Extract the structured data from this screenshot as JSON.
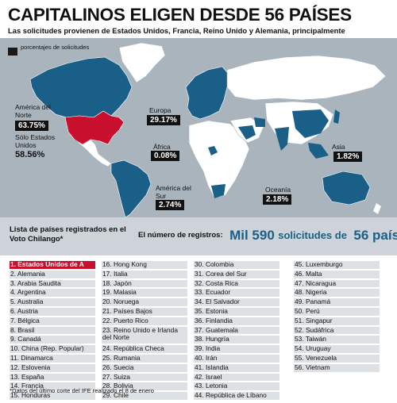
{
  "title": "CAPITALINOS ELIGEN DESDE 56 PAÍSES",
  "subtitle": "Las solicitudes provienen de Estados Unidos, Francia, Reino Unido y Alemania, principalmente",
  "legend": {
    "label": "porcentajes de solicitudes"
  },
  "regions": [
    {
      "key": "north-america",
      "name": "América del Norte",
      "pct": "63.75%"
    },
    {
      "key": "usa",
      "name": "Sólo Estados Unidos",
      "pct": "58.56%"
    },
    {
      "key": "europe",
      "name": "Europa",
      "pct": "29.17%"
    },
    {
      "key": "africa",
      "name": "África",
      "pct": "0.08%"
    },
    {
      "key": "asia",
      "name": "Asia",
      "pct": "1.82%"
    },
    {
      "key": "south-america",
      "name": "América del Sur",
      "pct": "2.74%"
    },
    {
      "key": "oceania",
      "name": "Oceanía",
      "pct": "2.18%"
    }
  ],
  "list_title": "Lista de países registrados en el Voto Chilango*",
  "registrations": {
    "lead": "El número de registros:",
    "number": "Mil 590",
    "mid": "solicitudes de",
    "countries": "56 países"
  },
  "countries": [
    [
      "1. Estados Unidos de A",
      "2. Alemania",
      "3. Arabia Saudita",
      "4. Argentina",
      "5. Australia",
      "6. Austria",
      "7. Bélgica",
      "8. Brasil",
      "9. Canadá",
      "10. China (Rep. Popular)",
      "11. Dinamarca",
      "12. Eslovenia",
      "13. España",
      "14. Francia",
      "15. Honduras"
    ],
    [
      "16. Hong Kong",
      "17. Italia",
      "18. Japón",
      "19. Malasia",
      "20. Noruega",
      "21. Países Bajos",
      "22. Puerto Rico",
      "23. Reino Unido e Irlanda del Norte",
      "24. República Checa",
      "25. Rumania",
      "26. Suecia",
      "27. Suiza",
      "28. Bolivia",
      "29. Chile"
    ],
    [
      "30. Colombia",
      "31. Corea del Sur",
      "32. Costa Rica",
      "33. Ecuador",
      "34. El Salvador",
      "35. Estonia",
      "36. Finlandia",
      "37. Guatemala",
      "38. Hungría",
      "39. India",
      "40. Irán",
      "41. Islandia",
      "42. Israel",
      "43. Letonia",
      "44. República de Líbano"
    ],
    [
      "45. Luxemburgo",
      "46. Malta",
      "47. Nicaragua",
      "48. Nigeria",
      "49. Panamá",
      "50. Perú",
      "51. Singapur",
      "52. Sudáfrica",
      "53. Taiwán",
      "54. Uruguay",
      "55. Venezuela",
      "56. Vietnam"
    ]
  ],
  "footnote": "*Datos del último corte del IFE realizado el 8 de enero",
  "colors": {
    "registered": "#1a5f87",
    "usa": "#c8102e",
    "unregistered": "#ffffff",
    "ocean": "#aab4bd"
  }
}
